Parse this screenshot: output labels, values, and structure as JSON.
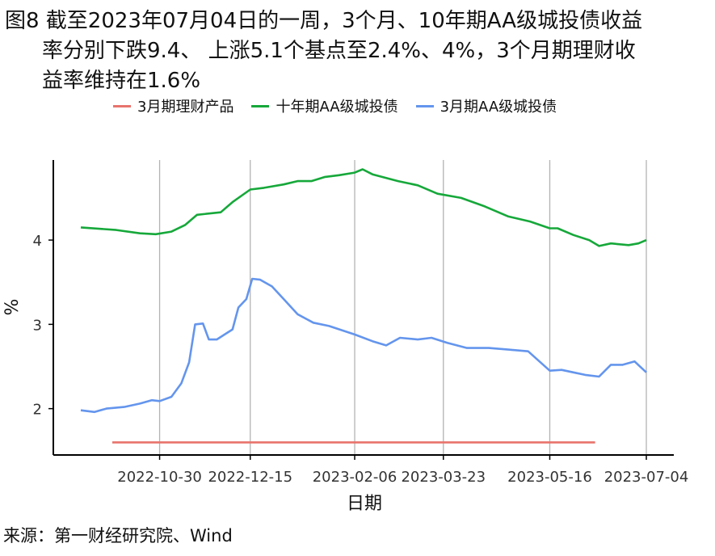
{
  "figure": {
    "title_lines": [
      "图8  截至2023年07月04日的一周，3个月、10年期AA级城投债收益",
      "率分别下跌9.4、 上涨5.1个基点至2.4%、4%，3个月期理财收",
      "益率维持在1.6%"
    ],
    "source": "来源：第一财经研究院、Wind"
  },
  "chart_data": {
    "type": "line",
    "xlabel": "日期",
    "ylabel": "%",
    "x_range": [
      "2022-09-20",
      "2023-07-04"
    ],
    "ylim": [
      1.45,
      4.95
    ],
    "y_ticks": [
      2,
      3,
      4
    ],
    "x_ticks": [
      "2022-10-30",
      "2022-12-15",
      "2023-02-06",
      "2023-03-23",
      "2023-05-16",
      "2023-07-04"
    ],
    "grid": "vertical",
    "legend_position": "top",
    "series": [
      {
        "name": "3月期理财产品",
        "color": "#E8736C",
        "points": [
          [
            "2022-10-06",
            1.6
          ],
          [
            "2023-06-08",
            1.6
          ]
        ]
      },
      {
        "name": "十年期AA级城投债",
        "color": "#16A83A",
        "points": [
          [
            "2022-09-20",
            4.15
          ],
          [
            "2022-10-08",
            4.12
          ],
          [
            "2022-10-20",
            4.08
          ],
          [
            "2022-10-28",
            4.07
          ],
          [
            "2022-11-05",
            4.1
          ],
          [
            "2022-11-12",
            4.18
          ],
          [
            "2022-11-18",
            4.3
          ],
          [
            "2022-11-30",
            4.33
          ],
          [
            "2022-12-06",
            4.45
          ],
          [
            "2022-12-15",
            4.6
          ],
          [
            "2022-12-22",
            4.62
          ],
          [
            "2023-01-01",
            4.66
          ],
          [
            "2023-01-08",
            4.7
          ],
          [
            "2023-01-15",
            4.7
          ],
          [
            "2023-01-22",
            4.75
          ],
          [
            "2023-01-29",
            4.77
          ],
          [
            "2023-02-06",
            4.8
          ],
          [
            "2023-02-10",
            4.84
          ],
          [
            "2023-02-15",
            4.78
          ],
          [
            "2023-02-28",
            4.7
          ],
          [
            "2023-03-10",
            4.65
          ],
          [
            "2023-03-20",
            4.55
          ],
          [
            "2023-04-01",
            4.5
          ],
          [
            "2023-04-13",
            4.4
          ],
          [
            "2023-04-25",
            4.28
          ],
          [
            "2023-05-06",
            4.22
          ],
          [
            "2023-05-16",
            4.14
          ],
          [
            "2023-05-20",
            4.14
          ],
          [
            "2023-05-28",
            4.06
          ],
          [
            "2023-06-05",
            4.0
          ],
          [
            "2023-06-10",
            3.93
          ],
          [
            "2023-06-16",
            3.96
          ],
          [
            "2023-06-25",
            3.94
          ],
          [
            "2023-06-30",
            3.96
          ],
          [
            "2023-07-04",
            4.0
          ]
        ]
      },
      {
        "name": "3月期AA级城投债",
        "color": "#6495ED",
        "points": [
          [
            "2022-09-20",
            1.98
          ],
          [
            "2022-09-27",
            1.96
          ],
          [
            "2022-10-03",
            2.0
          ],
          [
            "2022-10-12",
            2.02
          ],
          [
            "2022-10-20",
            2.06
          ],
          [
            "2022-10-26",
            2.1
          ],
          [
            "2022-10-30",
            2.09
          ],
          [
            "2022-11-05",
            2.14
          ],
          [
            "2022-11-10",
            2.3
          ],
          [
            "2022-11-14",
            2.55
          ],
          [
            "2022-11-17",
            3.0
          ],
          [
            "2022-11-21",
            3.01
          ],
          [
            "2022-11-24",
            2.82
          ],
          [
            "2022-11-28",
            2.82
          ],
          [
            "2022-12-02",
            2.88
          ],
          [
            "2022-12-06",
            2.94
          ],
          [
            "2022-12-09",
            3.2
          ],
          [
            "2022-12-13",
            3.3
          ],
          [
            "2022-12-16",
            3.54
          ],
          [
            "2022-12-20",
            3.53
          ],
          [
            "2022-12-26",
            3.45
          ],
          [
            "2023-01-01",
            3.3
          ],
          [
            "2023-01-08",
            3.12
          ],
          [
            "2023-01-16",
            3.02
          ],
          [
            "2023-01-24",
            2.98
          ],
          [
            "2023-02-06",
            2.88
          ],
          [
            "2023-02-15",
            2.8
          ],
          [
            "2023-02-22",
            2.75
          ],
          [
            "2023-03-01",
            2.84
          ],
          [
            "2023-03-10",
            2.82
          ],
          [
            "2023-03-17",
            2.84
          ],
          [
            "2023-03-25",
            2.78
          ],
          [
            "2023-04-04",
            2.72
          ],
          [
            "2023-04-15",
            2.72
          ],
          [
            "2023-04-25",
            2.7
          ],
          [
            "2023-05-05",
            2.68
          ],
          [
            "2023-05-16",
            2.45
          ],
          [
            "2023-05-22",
            2.46
          ],
          [
            "2023-05-28",
            2.43
          ],
          [
            "2023-06-03",
            2.4
          ],
          [
            "2023-06-10",
            2.38
          ],
          [
            "2023-06-16",
            2.52
          ],
          [
            "2023-06-22",
            2.52
          ],
          [
            "2023-06-28",
            2.56
          ],
          [
            "2023-07-04",
            2.43
          ]
        ]
      }
    ]
  }
}
